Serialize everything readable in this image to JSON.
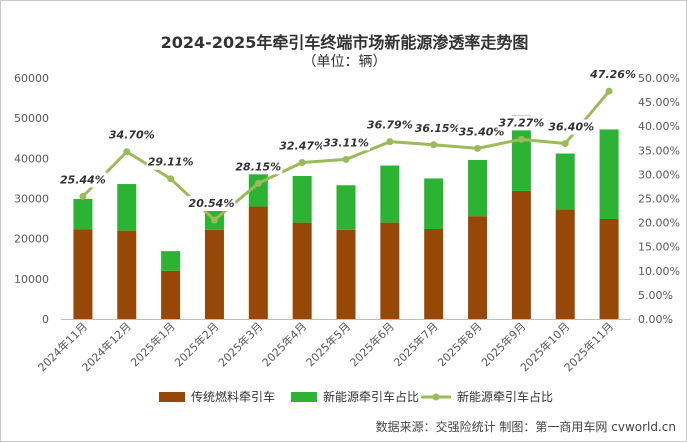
{
  "header": {
    "title": "2024-2025年牵引车终端市场新能源渗透率走势图",
    "subtitle": "（单位：辆）"
  },
  "footer": {
    "source": "数据来源：交强险统计 制图：第一商用车网 cvworld.cn"
  },
  "colors": {
    "fuel": "#974706",
    "nev": "#2db333",
    "ratio_line": "#9bbb59",
    "ratio_label_bg": "#ffffff"
  },
  "chart_data": {
    "type": "bar",
    "title": "2024-2025年牵引车终端市场新能源渗透率走势图",
    "subtitle": "（单位：辆）",
    "categories": [
      "2024年11月",
      "2024年12月",
      "2025年1月",
      "2025年2月",
      "2025年3月",
      "2025年4月",
      "2025年5月",
      "2025年6月",
      "2025年7月",
      "2025年8月",
      "2025年9月",
      "2025年10月",
      "2025年11月"
    ],
    "series": [
      {
        "name": "传统燃料牵引车",
        "kind": "stacked-bar",
        "axis": "left",
        "values": [
          22300,
          22000,
          12000,
          22200,
          28000,
          24000,
          22200,
          24000,
          22400,
          25600,
          31900,
          27300,
          24900
        ]
      },
      {
        "name": "新能源牵引车占比",
        "kind": "stacked-bar",
        "axis": "left",
        "values": [
          7600,
          11600,
          4900,
          7300,
          11000,
          11600,
          11100,
          14200,
          12600,
          14000,
          18900,
          13900,
          22300
        ]
      },
      {
        "name": "新能源牵引车占比",
        "kind": "line",
        "axis": "right",
        "unit": "%",
        "values": [
          25.44,
          34.7,
          29.11,
          20.54,
          28.15,
          32.47,
          33.11,
          36.79,
          36.15,
          35.4,
          37.27,
          36.4,
          47.26
        ],
        "labels": [
          "25.44%",
          "34.70%",
          "29.11%",
          "20.54%",
          "28.15%",
          "32.47%",
          "33.11%",
          "36.79%",
          "36.15%",
          "35.40%",
          "37.27%",
          "36.40%",
          "47.26%"
        ]
      }
    ],
    "y_left": {
      "min": 0,
      "max": 60000,
      "step": 10000,
      "tick_labels": [
        "0",
        "10000",
        "20000",
        "30000",
        "40000",
        "50000",
        "60000"
      ]
    },
    "y_right": {
      "min": 0,
      "max": 50,
      "step": 5,
      "tick_labels": [
        "0.00%",
        "5.00%",
        "10.00%",
        "15.00%",
        "20.00%",
        "25.00%",
        "30.00%",
        "35.00%",
        "40.00%",
        "45.00%",
        "50.00%"
      ]
    },
    "legend": {
      "placement": "bottom",
      "items": [
        "传统燃料牵引车",
        "新能源牵引车占比",
        "新能源牵引车占比"
      ]
    },
    "grid": false
  }
}
